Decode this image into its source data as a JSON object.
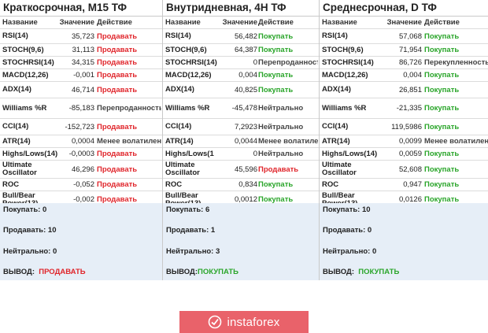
{
  "panels": [
    {
      "title": "Краткосрочная, M15 ТФ",
      "header": {
        "name": "Название",
        "value": "Значение",
        "action": "Действие"
      },
      "rows": [
        {
          "name": "RSI(14)",
          "value": "35,723",
          "action": "Продавать",
          "kind": "sell"
        },
        {
          "name": "STOCH(9,6)",
          "value": "31,113",
          "action": "Продавать",
          "kind": "sell"
        },
        {
          "name": "STOCHRSI(14)",
          "value": "34,315",
          "action": "Продавать",
          "kind": "sell"
        },
        {
          "name": "MACD(12,26)",
          "value": "-0,001",
          "action": "Продавать",
          "kind": "sell"
        },
        {
          "name": "ADX(14)",
          "value": "46,714",
          "action": "Продавать",
          "kind": "sell"
        },
        {
          "name": "Williams %R",
          "value": "-85,183",
          "action": "Перепроданность",
          "kind": "neutral"
        },
        {
          "name": "CCI(14)",
          "value": "-152,723",
          "action": "Продавать",
          "kind": "sell"
        },
        {
          "name": "ATR(14)",
          "value": "0,0004",
          "action": "Менее волатилен",
          "kind": "neutral"
        },
        {
          "name": "Highs/Lows(14)",
          "value": "-0,0003",
          "action": "Продавать",
          "kind": "sell"
        },
        {
          "name": "Ultimate\nOscillator",
          "value": "46,296",
          "action": "Продавать",
          "kind": "sell"
        },
        {
          "name": "ROC",
          "value": "-0,052",
          "action": "Продавать",
          "kind": "sell"
        },
        {
          "name": "Bull/Bear\nPower(13)",
          "value": "-0,002",
          "action": "Продавать",
          "kind": "sell"
        }
      ],
      "summary": {
        "buy": "Покупать: 0",
        "sell": "Продавать: 10",
        "neutral": "Нейтрально: 0",
        "verdict_label": "ВЫВОД:",
        "verdict_value": "ПРОДАВАТЬ",
        "verdict_kind": "sell"
      }
    },
    {
      "title": "Внутридневная, 4Н ТФ",
      "header": {
        "name": "Название",
        "value": "Значение",
        "action": "Действие"
      },
      "rows": [
        {
          "name": "RSI(14)",
          "value": "56,482",
          "action": "Покупать",
          "kind": "buy"
        },
        {
          "name": "STOCH(9,6)",
          "value": "64,387",
          "action": "Покупать",
          "kind": "buy"
        },
        {
          "name": "STOCHRSI(14)",
          "value": "0",
          "action": "Перепроданность",
          "kind": "neutral"
        },
        {
          "name": "MACD(12,26)",
          "value": "0,004",
          "action": "Покупать",
          "kind": "buy"
        },
        {
          "name": "ADX(14)",
          "value": "40,825",
          "action": "Покупать",
          "kind": "buy"
        },
        {
          "name": "Williams %R",
          "value": "-45,478",
          "action": "Нейтрально",
          "kind": "neutral"
        },
        {
          "name": "CCI(14)",
          "value": "7,2923",
          "action": "Нейтрально",
          "kind": "neutral"
        },
        {
          "name": "ATR(14)",
          "value": "0,0044",
          "action": "Менее волатилен",
          "kind": "neutral"
        },
        {
          "name": "Highs/Lows(1",
          "value": "0",
          "action": "Нейтрально",
          "kind": "neutral"
        },
        {
          "name": "Ultimate\nOscillator",
          "value": "45,596",
          "action": "Продавать",
          "kind": "sell"
        },
        {
          "name": "ROC",
          "value": "0,834",
          "action": "Покупать",
          "kind": "buy"
        },
        {
          "name": "Bull/Bear\nPower(13)",
          "value": "0,0012",
          "action": "Покупать",
          "kind": "buy"
        }
      ],
      "summary": {
        "buy": "Покупать: 6",
        "sell": "Продавать: 1",
        "neutral": "Нейтрально: 3",
        "verdict_label": "ВЫВОД:",
        "verdict_value": "ПОКУПАТЬ",
        "verdict_kind": "buy"
      }
    },
    {
      "title": "Среднесрочная, D ТФ",
      "header": {
        "name": "Название",
        "value": "Значение",
        "action": "Действие"
      },
      "rows": [
        {
          "name": "RSI(14)",
          "value": "57,068",
          "action": "Покупать",
          "kind": "buy"
        },
        {
          "name": "STOCH(9,6)",
          "value": "71,954",
          "action": "Покупать",
          "kind": "buy"
        },
        {
          "name": "STOCHRSI(14)",
          "value": "86,726",
          "action": "Перекупленность",
          "kind": "neutral"
        },
        {
          "name": "MACD(12,26)",
          "value": "0,004",
          "action": "Покупать",
          "kind": "buy"
        },
        {
          "name": "ADX(14)",
          "value": "26,851",
          "action": "Покупать",
          "kind": "buy"
        },
        {
          "name": "Williams %R",
          "value": "-21,335",
          "action": "Покупать",
          "kind": "buy"
        },
        {
          "name": "CCI(14)",
          "value": "119,5986",
          "action": "Покупать",
          "kind": "buy"
        },
        {
          "name": "ATR(14)",
          "value": "0,0099",
          "action": "Менее волатилен",
          "kind": "neutral"
        },
        {
          "name": "Highs/Lows(14)",
          "value": "0,0059",
          "action": "Покупать",
          "kind": "buy"
        },
        {
          "name": "Ultimate\nOscillator",
          "value": "52,608",
          "action": "Покупать",
          "kind": "buy"
        },
        {
          "name": "ROC",
          "value": "0,947",
          "action": "Покупать",
          "kind": "buy"
        },
        {
          "name": "Bull/Bear\nPower(13)",
          "value": "0,0126",
          "action": "Покупать",
          "kind": "buy"
        }
      ],
      "summary": {
        "buy": "Покупать: 10",
        "sell": "Продавать: 0",
        "neutral": "Нейтрально: 0",
        "verdict_label": "ВЫВОД:",
        "verdict_value": "ПОКУПАТЬ",
        "verdict_kind": "buy"
      }
    }
  ],
  "brand": {
    "logo_text": "instaforex",
    "icon": "instaforex-logo-icon"
  }
}
